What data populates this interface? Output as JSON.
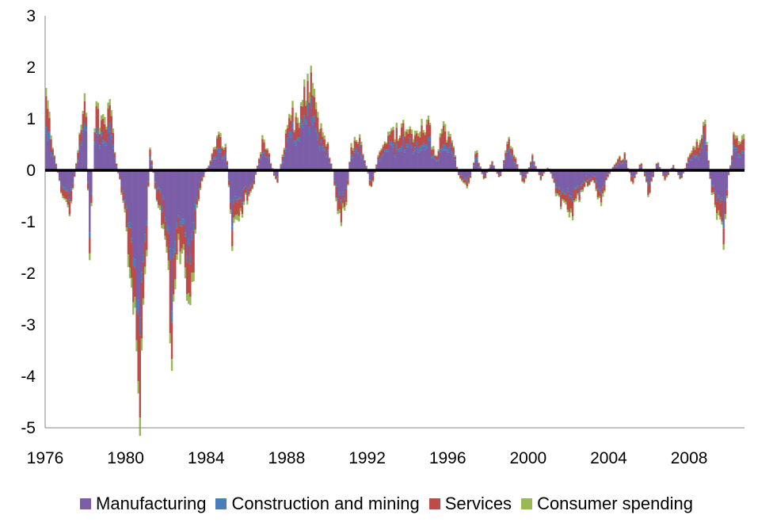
{
  "chart_data": {
    "type": "bar",
    "stacked": true,
    "title": "",
    "xlabel": "",
    "ylabel": "",
    "xlim": [
      1976,
      2010.75
    ],
    "ylim": [
      -5,
      3
    ],
    "yticks": [
      "3",
      "2",
      "1",
      "0",
      "-1",
      "-2",
      "-3",
      "-4",
      "-5"
    ],
    "xticks": [
      "1976",
      "1980",
      "1984",
      "1988",
      "1992",
      "1996",
      "2000",
      "2004",
      "2008"
    ],
    "grid": false,
    "legend_position": "bottom",
    "series": [
      {
        "name": "Manufacturing",
        "color": "#7B5EA7"
      },
      {
        "name": "Construction and mining",
        "color": "#4A7EBB"
      },
      {
        "name": "Services",
        "color": "#BE4B48"
      },
      {
        "name": "Consumer spending",
        "color": "#98B954"
      }
    ],
    "anchors": [
      [
        1976.0,
        1.6
      ],
      [
        1976.5,
        0.2
      ],
      [
        1976.8,
        -0.4
      ],
      [
        1977.2,
        -0.9
      ],
      [
        1977.6,
        0.3
      ],
      [
        1978.0,
        1.8
      ],
      [
        1978.2,
        -1.7
      ],
      [
        1978.5,
        1.2
      ],
      [
        1979.0,
        0.8
      ],
      [
        1979.2,
        1.6
      ],
      [
        1979.5,
        0.2
      ],
      [
        1979.8,
        -0.4
      ],
      [
        1980.0,
        -1.2
      ],
      [
        1980.3,
        -2.1
      ],
      [
        1980.6,
        -3.6
      ],
      [
        1980.75,
        -4.8
      ],
      [
        1980.9,
        -3.1
      ],
      [
        1981.2,
        0.6
      ],
      [
        1981.5,
        -0.5
      ],
      [
        1982.0,
        -1.2
      ],
      [
        1982.3,
        -3.6
      ],
      [
        1982.5,
        -2.0
      ],
      [
        1982.8,
        -1.4
      ],
      [
        1983.2,
        -2.8
      ],
      [
        1983.5,
        -1.0
      ],
      [
        1983.8,
        -0.2
      ],
      [
        1984.3,
        0.3
      ],
      [
        1984.6,
        0.8
      ],
      [
        1985.0,
        0.4
      ],
      [
        1985.3,
        -1.3
      ],
      [
        1985.7,
        -0.8
      ],
      [
        1986.0,
        -0.6
      ],
      [
        1986.4,
        -0.2
      ],
      [
        1986.8,
        0.6
      ],
      [
        1987.2,
        0.2
      ],
      [
        1987.5,
        -0.3
      ],
      [
        1987.9,
        0.6
      ],
      [
        1988.2,
        1.2
      ],
      [
        1988.5,
        0.9
      ],
      [
        1988.8,
        1.5
      ],
      [
        1989.1,
        2.0
      ],
      [
        1989.5,
        1.0
      ],
      [
        1989.9,
        0.7
      ],
      [
        1990.3,
        0.0
      ],
      [
        1990.6,
        -1.0
      ],
      [
        1990.9,
        -0.9
      ],
      [
        1991.2,
        0.5
      ],
      [
        1991.6,
        0.6
      ],
      [
        1991.9,
        0.2
      ],
      [
        1992.2,
        -0.4
      ],
      [
        1992.6,
        0.4
      ],
      [
        1993.0,
        0.6
      ],
      [
        1993.5,
        0.8
      ],
      [
        1994.0,
        0.9
      ],
      [
        1994.5,
        0.7
      ],
      [
        1995.0,
        1.0
      ],
      [
        1995.4,
        0.2
      ],
      [
        1995.8,
        0.9
      ],
      [
        1996.2,
        0.6
      ],
      [
        1996.6,
        -0.2
      ],
      [
        1997.0,
        -0.4
      ],
      [
        1997.4,
        0.4
      ],
      [
        1997.8,
        -0.2
      ],
      [
        1998.2,
        0.2
      ],
      [
        1998.6,
        -0.2
      ],
      [
        1999.0,
        0.6
      ],
      [
        1999.4,
        0.2
      ],
      [
        1999.8,
        -0.3
      ],
      [
        2000.2,
        0.3
      ],
      [
        2000.6,
        -0.2
      ],
      [
        2001.0,
        0.1
      ],
      [
        2001.5,
        -0.6
      ],
      [
        2002.0,
        -0.9
      ],
      [
        2002.4,
        -0.7
      ],
      [
        2002.8,
        -0.3
      ],
      [
        2003.2,
        -0.2
      ],
      [
        2003.6,
        -0.6
      ],
      [
        2004.0,
        -0.1
      ],
      [
        2004.4,
        0.2
      ],
      [
        2004.8,
        0.3
      ],
      [
        2005.2,
        -0.3
      ],
      [
        2005.6,
        0.2
      ],
      [
        2006.0,
        -0.5
      ],
      [
        2006.4,
        0.2
      ],
      [
        2006.8,
        -0.2
      ],
      [
        2007.2,
        0.1
      ],
      [
        2007.6,
        -0.2
      ],
      [
        2008.0,
        0.3
      ],
      [
        2008.4,
        0.5
      ],
      [
        2008.8,
        0.9
      ],
      [
        2009.1,
        -0.4
      ],
      [
        2009.4,
        -1.0
      ],
      [
        2009.7,
        -1.4
      ],
      [
        2009.9,
        -0.3
      ],
      [
        2010.2,
        0.6
      ],
      [
        2010.75,
        0.7
      ]
    ],
    "component_shares": {
      "positive": [
        0.55,
        0.08,
        0.28,
        0.09
      ],
      "negative": [
        0.58,
        0.06,
        0.28,
        0.08
      ]
    },
    "bars_per_year": 12
  }
}
